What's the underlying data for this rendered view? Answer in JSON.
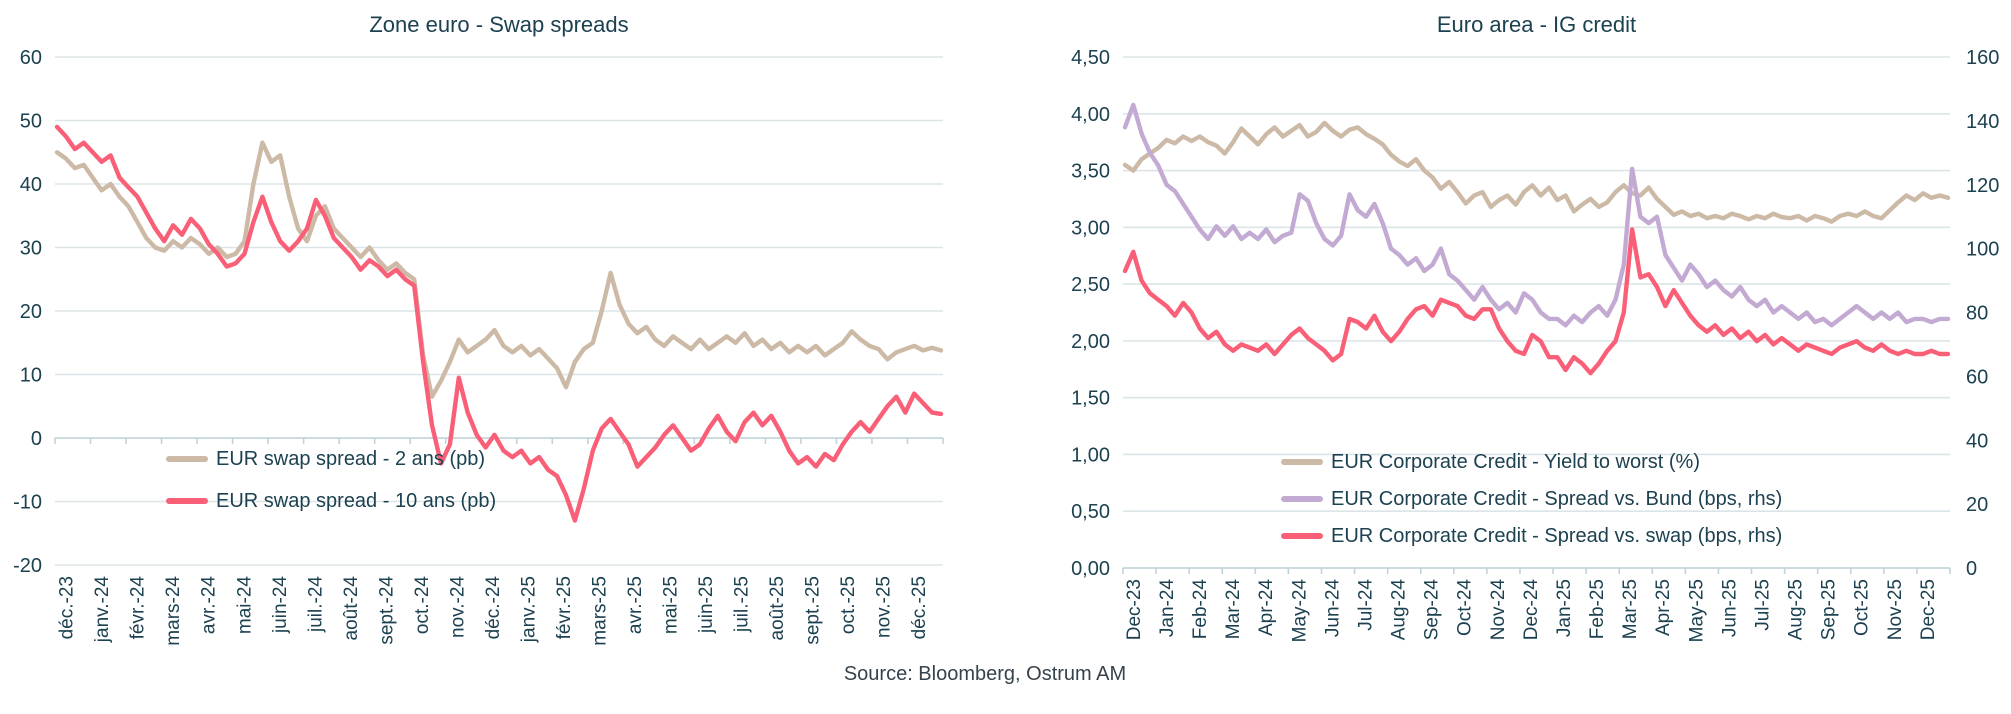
{
  "page": {
    "background": "#ffffff",
    "text_color": "#1c4150",
    "grid_color": "#dbe5e8",
    "axis_color": "#c2d3d8",
    "source_note": "Source: Bloomberg, Ostrum AM"
  },
  "chart_data": [
    {
      "id": "swap-spreads",
      "type": "line",
      "title": "Zone euro - Swap spreads",
      "grid": true,
      "legend_position": "inside-lower-left",
      "x_labels": [
        "déc.-23",
        "janv.-24",
        "févr.-24",
        "mars-24",
        "avr.-24",
        "mai-24",
        "juin-24",
        "juil.-24",
        "août-24",
        "sept.-24",
        "oct.-24",
        "nov.-24",
        "déc.-24",
        "janv.-25",
        "févr.-25",
        "mars-25",
        "avr.-25",
        "mai-25",
        "juin-25",
        "juil.-25",
        "août-25",
        "sept.-25",
        "oct.-25",
        "nov.-25",
        "déc.-25"
      ],
      "y_axis": {
        "min": -20,
        "max": 60,
        "tick_step": 10,
        "tick_labels": [
          "60",
          "50",
          "40",
          "30",
          "20",
          "10",
          "0",
          "-10",
          "-20"
        ]
      },
      "series": [
        {
          "key": "eur-swap-2a",
          "name": "EUR swap spread - 2 ans (pb)",
          "color": "#ccb9a6",
          "axis": "left",
          "values": [
            45,
            44,
            42.5,
            43,
            41,
            39,
            40,
            38,
            36.5,
            34,
            31.5,
            30,
            29.5,
            31,
            30,
            31.5,
            30.5,
            29,
            30,
            28.5,
            29,
            31,
            40,
            46.5,
            43.5,
            44.5,
            38,
            33,
            31,
            35,
            36.5,
            33,
            31.5,
            30,
            28.5,
            30,
            28,
            26.5,
            27.5,
            26,
            25,
            13,
            6.5,
            9,
            12,
            15.5,
            13.5,
            14.5,
            15.5,
            17,
            14.5,
            13.5,
            14.5,
            13,
            14,
            12.5,
            11,
            8,
            12,
            14,
            15,
            20,
            26,
            21,
            18,
            16.5,
            17.5,
            15.5,
            14.5,
            16,
            15,
            14,
            15.5,
            14,
            15,
            16,
            15,
            16.5,
            14.5,
            15.5,
            14,
            15,
            13.5,
            14.5,
            13.5,
            14.5,
            13,
            14,
            15,
            16.8,
            15.5,
            14.5,
            14,
            12.4,
            13.5,
            14,
            14.5,
            13.8,
            14.2,
            13.8
          ]
        },
        {
          "key": "eur-swap-10a",
          "name": "EUR swap spread - 10 ans (pb)",
          "color": "#f96078",
          "axis": "left",
          "values": [
            49,
            47.5,
            45.5,
            46.5,
            45,
            43.5,
            44.5,
            41,
            39.5,
            38,
            35.5,
            33,
            31,
            33.5,
            32,
            34.5,
            33,
            30.5,
            29,
            27,
            27.5,
            29,
            34,
            38,
            34,
            31,
            29.5,
            31,
            33,
            37.5,
            35,
            31.5,
            30,
            28.5,
            26.5,
            28,
            27,
            25.5,
            26.5,
            25,
            24,
            12,
            2,
            -4,
            -1,
            9.5,
            4,
            0.5,
            -1.5,
            0.5,
            -2,
            -3,
            -2,
            -4,
            -3,
            -5,
            -6,
            -9,
            -13,
            -8,
            -2,
            1.5,
            3,
            1,
            -1,
            -4.5,
            -3,
            -1.5,
            0.5,
            2,
            0,
            -2,
            -1,
            1.5,
            3.5,
            1,
            -0.5,
            2.5,
            4,
            2,
            3.5,
            1,
            -2,
            -4,
            -3,
            -4.5,
            -2.5,
            -3.5,
            -1,
            1,
            2.5,
            1,
            3,
            5,
            6.5,
            4,
            7,
            5.5,
            4,
            3.8
          ]
        }
      ]
    },
    {
      "id": "ig-credit",
      "type": "line",
      "title": "Euro area - IG credit",
      "grid": true,
      "legend_position": "inside-lower-left",
      "x_labels": [
        "Dec-23",
        "Jan-24",
        "Feb-24",
        "Mar-24",
        "Apr-24",
        "May-24",
        "Jun-24",
        "Jul-24",
        "Aug-24",
        "Sep-24",
        "Oct-24",
        "Nov-24",
        "Dec-24",
        "Jan-25",
        "Feb-25",
        "Mar-25",
        "Apr-25",
        "May-25",
        "Jun-25",
        "Jul-25",
        "Aug-25",
        "Sep-25",
        "Oct-25",
        "Nov-25",
        "Dec-25"
      ],
      "y_axis_left": {
        "min": 0,
        "max": 4.5,
        "tick_step": 0.5,
        "tick_labels": [
          "4,50",
          "4,00",
          "3,50",
          "3,00",
          "2,50",
          "2,00",
          "1,50",
          "1,00",
          "0,50",
          "0,00"
        ]
      },
      "y_axis_right": {
        "min": 0,
        "max": 160,
        "tick_step": 20,
        "tick_labels": [
          "160",
          "140",
          "120",
          "100",
          "80",
          "60",
          "40",
          "20",
          "0"
        ]
      },
      "series": [
        {
          "key": "yield-to-worst",
          "name": "EUR Corporate Credit - Yield to worst (%)",
          "color": "#ccb9a6",
          "axis": "left",
          "values": [
            3.55,
            3.5,
            3.6,
            3.65,
            3.7,
            3.77,
            3.74,
            3.8,
            3.76,
            3.8,
            3.75,
            3.72,
            3.65,
            3.75,
            3.87,
            3.8,
            3.73,
            3.82,
            3.88,
            3.8,
            3.85,
            3.9,
            3.8,
            3.84,
            3.92,
            3.85,
            3.8,
            3.86,
            3.88,
            3.82,
            3.78,
            3.73,
            3.64,
            3.58,
            3.54,
            3.6,
            3.5,
            3.44,
            3.34,
            3.4,
            3.31,
            3.21,
            3.28,
            3.31,
            3.18,
            3.24,
            3.28,
            3.2,
            3.31,
            3.37,
            3.28,
            3.35,
            3.24,
            3.28,
            3.14,
            3.2,
            3.25,
            3.18,
            3.22,
            3.31,
            3.37,
            3.3,
            3.28,
            3.35,
            3.25,
            3.18,
            3.11,
            3.14,
            3.1,
            3.12,
            3.08,
            3.1,
            3.08,
            3.12,
            3.1,
            3.07,
            3.1,
            3.08,
            3.12,
            3.09,
            3.08,
            3.1,
            3.06,
            3.1,
            3.08,
            3.05,
            3.1,
            3.12,
            3.1,
            3.14,
            3.1,
            3.08,
            3.15,
            3.22,
            3.28,
            3.24,
            3.3,
            3.26,
            3.28,
            3.26
          ]
        },
        {
          "key": "spread-vs-bund",
          "name": "EUR Corporate Credit - Spread vs. Bund (bps, rhs)",
          "color": "#c3aad3",
          "axis": "right",
          "values": [
            138,
            145,
            136,
            130,
            126,
            120,
            118,
            114,
            110,
            106,
            103,
            107,
            104,
            107,
            103,
            105,
            103,
            106,
            102,
            104,
            105,
            117,
            115,
            108,
            103,
            101,
            104,
            117,
            112,
            110,
            114,
            108,
            100,
            98,
            95,
            97,
            93,
            95,
            100,
            92,
            90,
            87,
            84,
            88,
            84,
            81,
            83,
            80,
            86,
            84,
            80,
            78,
            78,
            76,
            79,
            77,
            80,
            82,
            79,
            84,
            95,
            125,
            110,
            108,
            110,
            98,
            94,
            90,
            95,
            92,
            88,
            90,
            87,
            85,
            88,
            84,
            82,
            84,
            80,
            82,
            80,
            78,
            80,
            77,
            78,
            76,
            78,
            80,
            82,
            80,
            78,
            80,
            78,
            80,
            77,
            78,
            78,
            77,
            78,
            78
          ]
        },
        {
          "key": "spread-vs-swap",
          "name": "EUR Corporate Credit - Spread vs. swap (bps, rhs)",
          "color": "#f96078",
          "axis": "right",
          "values": [
            93,
            99,
            90,
            86,
            84,
            82,
            79,
            83,
            80,
            75,
            72,
            74,
            70,
            68,
            70,
            69,
            68,
            70,
            67,
            70,
            73,
            75,
            72,
            70,
            68,
            65,
            67,
            78,
            77,
            75,
            79,
            74,
            71,
            74,
            78,
            81,
            82,
            79,
            84,
            83,
            82,
            79,
            78,
            81,
            81,
            75,
            71,
            68,
            67,
            73,
            71,
            66,
            66,
            62,
            66,
            64,
            61,
            64,
            68,
            71,
            80,
            106,
            91,
            92,
            88,
            82,
            87,
            83,
            79,
            76,
            74,
            76,
            73,
            75,
            72,
            74,
            71,
            73,
            70,
            72,
            70,
            68,
            70,
            69,
            68,
            67,
            69,
            70,
            71,
            69,
            68,
            70,
            68,
            67,
            68,
            67,
            67,
            68,
            67,
            67
          ]
        }
      ]
    }
  ]
}
